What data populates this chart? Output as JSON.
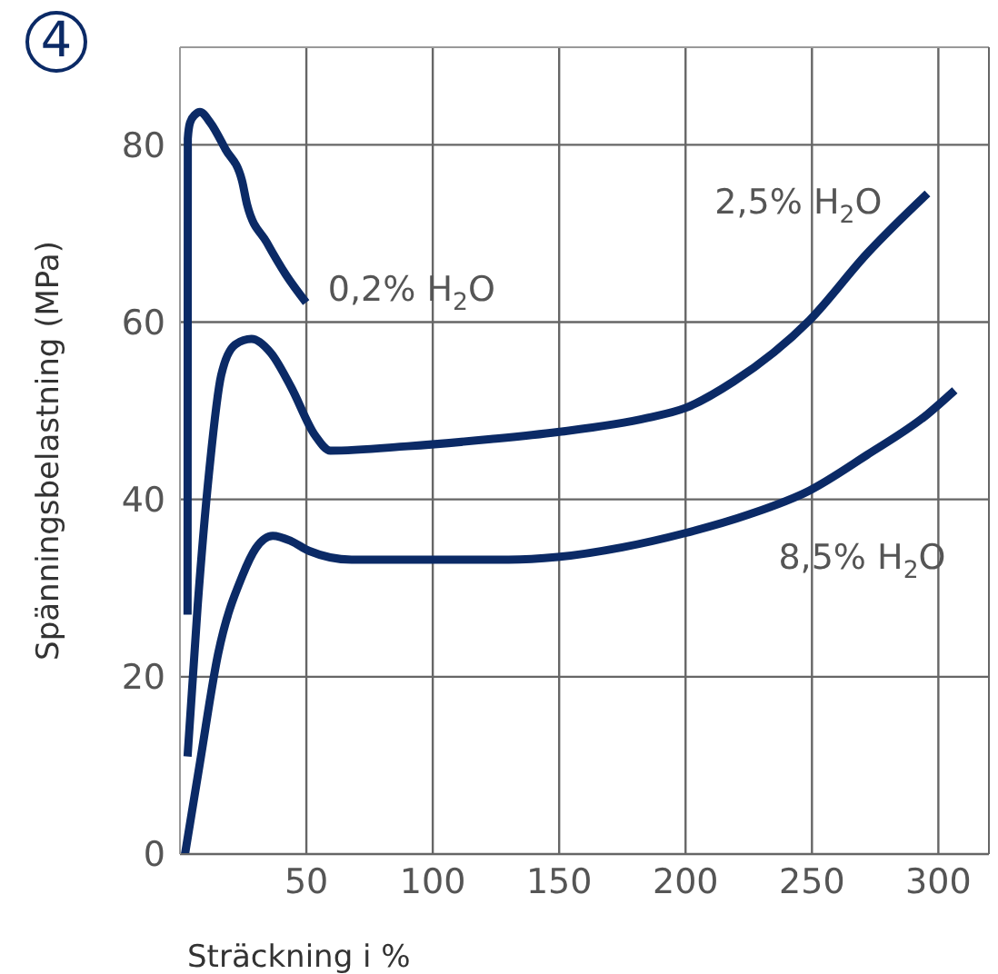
{
  "chart_data": {
    "type": "line",
    "xlabel": "Sträckning i %",
    "ylabel": "Spänningsbelastning (MPa)",
    "xlim": [
      0,
      320
    ],
    "xticks": [
      50,
      100,
      150,
      200,
      250,
      300
    ],
    "ylim": [
      0,
      91
    ],
    "yticks": [
      0,
      20,
      40,
      60,
      80
    ],
    "grid": true,
    "series": [
      {
        "name": "0,2% H$_{2}$O",
        "color": "#0b2a66",
        "x": [
          3,
          3.1,
          4,
          6,
          7.9,
          12,
          18,
          24.5,
          26.6,
          34.3,
          42,
          49.9
        ],
        "values": [
          27,
          80.7,
          82.5,
          83.4,
          83.7,
          82.5,
          79.5,
          76,
          73.2,
          69,
          65.3,
          62.2
        ]
      },
      {
        "name": "2,5% H$_{2}$O",
        "color": "#0b2a66",
        "x": [
          3,
          7,
          11.5,
          16.3,
          22,
          28.3,
          36,
          43.9,
          53.5,
          59.5,
          90,
          123,
          149.4,
          185,
          199.8,
          219,
          249,
          271.7,
          295.7
        ],
        "values": [
          11,
          28,
          43,
          54,
          57.5,
          58.1,
          56.5,
          52.7,
          47.2,
          45.5,
          46,
          46.8,
          47.6,
          49.2,
          50.3,
          53.3,
          60.2,
          67.7,
          74.5
        ]
      },
      {
        "name": "8,5% H$_{2}$O",
        "color": "#0b2a66",
        "x": [
          2,
          7.9,
          15.1,
          24.7,
          30,
          36.7,
          44,
          51,
          67.9,
          100,
          130,
          149.4,
          175,
          199.8,
          225,
          249,
          271.7,
          295.7,
          306.5
        ],
        "values": [
          0,
          10.3,
          22.6,
          31.4,
          34.5,
          35.9,
          35.3,
          34.2,
          33.2,
          33.2,
          33.2,
          33.5,
          34.6,
          36.2,
          38.3,
          41,
          45,
          49.6,
          52.3
        ]
      }
    ],
    "annotations": [
      "4"
    ]
  }
}
